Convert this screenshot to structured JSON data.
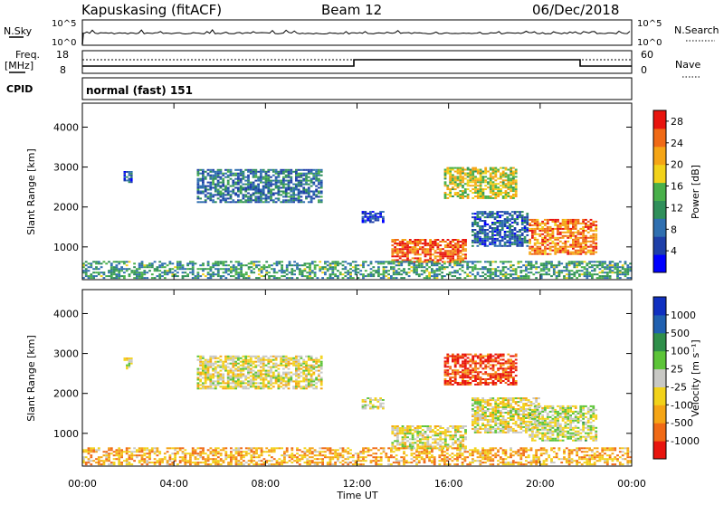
{
  "header": {
    "station": "Kapuskasing (fitACF)",
    "beam": "Beam 12",
    "date": "06/Dec/2018"
  },
  "top_panel": {
    "left_label": "N.Sky",
    "right_label": "N.Search",
    "left_ticks": [
      "10^5",
      "10^0"
    ],
    "right_ticks": [
      "10^5",
      "10^0"
    ]
  },
  "freq_panel": {
    "left_label_line1": "Freq.",
    "left_label_line2": "[MHz]",
    "right_label": "Nave",
    "left_ticks": [
      "18",
      "8"
    ],
    "right_ticks": [
      "60",
      "0"
    ]
  },
  "cpid_panel": {
    "label": "CPID",
    "text": "normal (fast) 151"
  },
  "colors": {
    "power_scale": [
      "#0000ff",
      "#1e3fa8",
      "#2f6fb0",
      "#2f8f5a",
      "#49b04a",
      "#f2d21a",
      "#f5a516",
      "#f06a16",
      "#e8140e"
    ],
    "velocity_scale": [
      "#e8140e",
      "#f06a16",
      "#f5a516",
      "#f2d21a",
      "#c8c8c4",
      "#5cc438",
      "#2f8f4a",
      "#2060b0",
      "#1030c0"
    ]
  },
  "chart_data": [
    {
      "type": "heatmap",
      "title": "",
      "xlabel": "Time UT",
      "ylabel": "Slant Range [km]",
      "x_ticks": [
        "00:00",
        "04:00",
        "08:00",
        "12:00",
        "16:00",
        "20:00",
        "00:00"
      ],
      "y_ticks": [
        "1000",
        "2000",
        "3000",
        "4000"
      ],
      "xlim": [
        0,
        24
      ],
      "ylim": [
        180,
        4600
      ],
      "colorbar": {
        "label": "Power [dB]",
        "ticks": [
          "4",
          "8",
          "12",
          "16",
          "20",
          "24",
          "28"
        ],
        "range": [
          0,
          30
        ]
      },
      "regions": [
        {
          "t": [
            1.8,
            2.2
          ],
          "r": [
            2600,
            2900
          ],
          "level": 0.2
        },
        {
          "t": [
            5.0,
            10.5
          ],
          "r": [
            2100,
            2950
          ],
          "level": 0.3
        },
        {
          "t": [
            12.2,
            13.2
          ],
          "r": [
            1600,
            1900
          ],
          "level": 0.15
        },
        {
          "t": [
            13.5,
            16.8
          ],
          "r": [
            600,
            1200
          ],
          "level": 0.85
        },
        {
          "t": [
            15.8,
            19.0
          ],
          "r": [
            2200,
            3000
          ],
          "level": 0.6
        },
        {
          "t": [
            17.0,
            19.5
          ],
          "r": [
            1000,
            1900
          ],
          "level": 0.25
        },
        {
          "t": [
            19.5,
            22.5
          ],
          "r": [
            800,
            1700
          ],
          "level": 0.8
        },
        {
          "t": [
            0.0,
            24.0
          ],
          "r": [
            200,
            650
          ],
          "level": 0.4
        }
      ]
    },
    {
      "type": "heatmap",
      "title": "",
      "xlabel": "Time UT",
      "ylabel": "Slant Range [km]",
      "x_ticks": [
        "00:00",
        "04:00",
        "08:00",
        "12:00",
        "16:00",
        "20:00",
        "00:00"
      ],
      "y_ticks": [
        "1000",
        "2000",
        "3000",
        "4000"
      ],
      "xlim": [
        0,
        24
      ],
      "ylim": [
        180,
        4600
      ],
      "colorbar": {
        "label": "Velocity [m s⁻¹]",
        "ticks": [
          "1000",
          "500",
          "100",
          "25",
          "-25",
          "-100",
          "-500",
          "-1000"
        ],
        "range": [
          -1000,
          1000
        ]
      },
      "regions": [
        {
          "t": [
            1.8,
            2.2
          ],
          "r": [
            2600,
            2900
          ],
          "level": 0.45
        },
        {
          "t": [
            5.0,
            10.5
          ],
          "r": [
            2100,
            2950
          ],
          "level": 0.45
        },
        {
          "t": [
            12.2,
            13.2
          ],
          "r": [
            1600,
            1900
          ],
          "level": 0.45
        },
        {
          "t": [
            13.5,
            16.8
          ],
          "r": [
            600,
            1200
          ],
          "level": 0.45
        },
        {
          "t": [
            15.8,
            19.0
          ],
          "r": [
            2200,
            3000
          ],
          "level": 0.1
        },
        {
          "t": [
            17.0,
            20.0
          ],
          "r": [
            1000,
            1900
          ],
          "level": 0.45
        },
        {
          "t": [
            19.5,
            22.5
          ],
          "r": [
            800,
            1700
          ],
          "level": 0.5
        },
        {
          "t": [
            0.0,
            24.0
          ],
          "r": [
            200,
            650
          ],
          "level": 0.3
        }
      ]
    }
  ]
}
